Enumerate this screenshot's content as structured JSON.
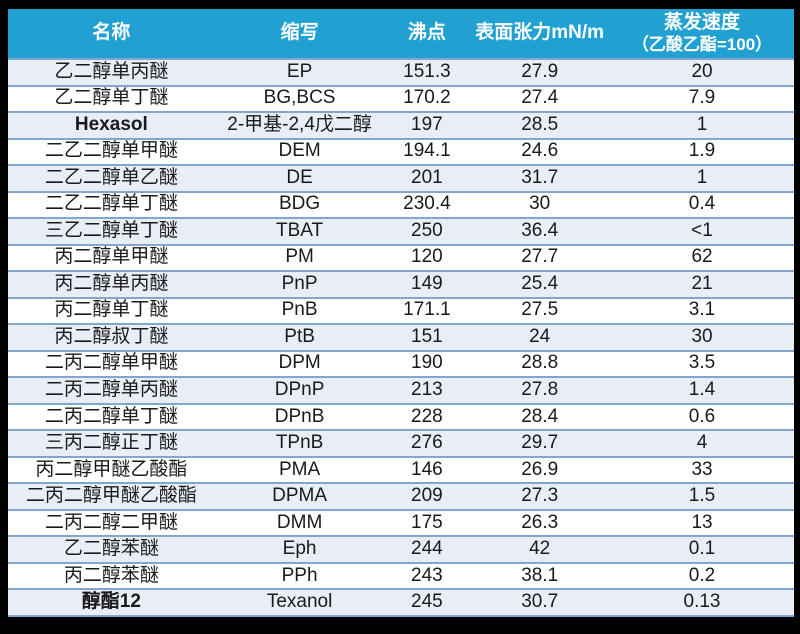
{
  "colors": {
    "frame_bg": "#000000",
    "header_bg": "#21A0D2",
    "header_text": "#FFFFFF",
    "row_bg": "#FFFFFF",
    "row_alt_bg": "#E9EDF6",
    "divider": "#82A7CF",
    "body_text": "#1A1A1A"
  },
  "table": {
    "headers": {
      "name": "名称",
      "abbr": "缩写",
      "bp": "沸点",
      "st": "表面张力mN/m",
      "evap_line1": "蒸发速度",
      "evap_line2": "（乙酸乙酯=100）"
    },
    "rows": [
      {
        "name": "乙二醇单丙醚",
        "abbr": "EP",
        "bp": "151.3",
        "st": "27.9",
        "evap": "20",
        "name_bold": false
      },
      {
        "name": "乙二醇单丁醚",
        "abbr": "BG,BCS",
        "bp": "170.2",
        "st": "27.4",
        "evap": "7.9",
        "name_bold": false
      },
      {
        "name": "Hexasol",
        "abbr": "2-甲基-2,4戊二醇",
        "bp": "197",
        "st": "28.5",
        "evap": "1",
        "name_bold": true
      },
      {
        "name": "二乙二醇单甲醚",
        "abbr": "DEM",
        "bp": "194.1",
        "st": "24.6",
        "evap": "1.9",
        "name_bold": false
      },
      {
        "name": "二乙二醇单乙醚",
        "abbr": "DE",
        "bp": "201",
        "st": "31.7",
        "evap": "1",
        "name_bold": false
      },
      {
        "name": "二乙二醇单丁醚",
        "abbr": "BDG",
        "bp": "230.4",
        "st": "30",
        "evap": "0.4",
        "name_bold": false
      },
      {
        "name": "三乙二醇单丁醚",
        "abbr": "TBAT",
        "bp": "250",
        "st": "36.4",
        "evap": "<1",
        "name_bold": false
      },
      {
        "name": "丙二醇单甲醚",
        "abbr": "PM",
        "bp": "120",
        "st": "27.7",
        "evap": "62",
        "name_bold": false
      },
      {
        "name": "丙二醇单丙醚",
        "abbr": "PnP",
        "bp": "149",
        "st": "25.4",
        "evap": "21",
        "name_bold": false
      },
      {
        "name": "丙二醇单丁醚",
        "abbr": "PnB",
        "bp": "171.1",
        "st": "27.5",
        "evap": "3.1",
        "name_bold": false
      },
      {
        "name": "丙二醇叔丁醚",
        "abbr": "PtB",
        "bp": "151",
        "st": "24",
        "evap": "30",
        "name_bold": false
      },
      {
        "name": "二丙二醇单甲醚",
        "abbr": "DPM",
        "bp": "190",
        "st": "28.8",
        "evap": "3.5",
        "name_bold": false
      },
      {
        "name": "二丙二醇单丙醚",
        "abbr": "DPnP",
        "bp": "213",
        "st": "27.8",
        "evap": "1.4",
        "name_bold": false
      },
      {
        "name": "二丙二醇单丁醚",
        "abbr": "DPnB",
        "bp": "228",
        "st": "28.4",
        "evap": "0.6",
        "name_bold": false
      },
      {
        "name": "三丙二醇正丁醚",
        "abbr": "TPnB",
        "bp": "276",
        "st": "29.7",
        "evap": "4",
        "name_bold": false
      },
      {
        "name": "丙二醇甲醚乙酸酯",
        "abbr": "PMA",
        "bp": "146",
        "st": "26.9",
        "evap": "33",
        "name_bold": false
      },
      {
        "name": "二丙二醇甲醚乙酸酯",
        "abbr": "DPMA",
        "bp": "209",
        "st": "27.3",
        "evap": "1.5",
        "name_bold": false
      },
      {
        "name": "二丙二醇二甲醚",
        "abbr": "DMM",
        "bp": "175",
        "st": "26.3",
        "evap": "13",
        "name_bold": false
      },
      {
        "name": "乙二醇苯醚",
        "abbr": "Eph",
        "bp": "244",
        "st": "42",
        "evap": "0.1",
        "name_bold": false
      },
      {
        "name": "丙二醇苯醚",
        "abbr": "PPh",
        "bp": "243",
        "st": "38.1",
        "evap": "0.2",
        "name_bold": false
      },
      {
        "name": "醇酯12",
        "abbr": "Texanol",
        "bp": "245",
        "st": "30.7",
        "evap": "0.13",
        "name_bold": true
      }
    ]
  }
}
